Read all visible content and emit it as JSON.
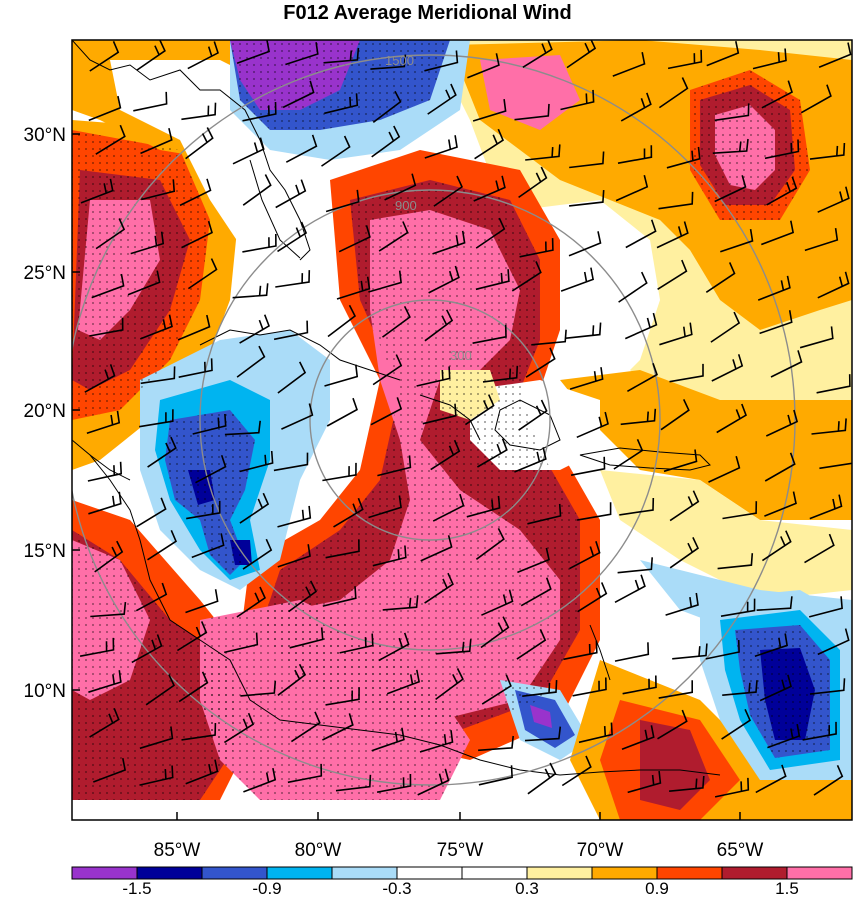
{
  "title": "F012 Average Meridional Wind",
  "axes": {
    "lat_ticks": [
      "30°N",
      "25°N",
      "20°N",
      "15°N",
      "10°N"
    ],
    "lon_ticks": [
      "85°W",
      "80°W",
      "75°W",
      "70°W",
      "65°W"
    ]
  },
  "colorbar": {
    "colors": [
      "#9933cc",
      "#000099",
      "#3355cc",
      "#00b4f0",
      "#aadcf8",
      "#ffffff",
      "#ffffff",
      "#fff0a0",
      "#ffaa00",
      "#ff4500",
      "#b01c2e",
      "#ff6fa8"
    ],
    "labels": [
      "-1.5",
      "-0.9",
      "-0.3",
      "0.3",
      "0.9",
      "1.5"
    ]
  },
  "range_rings": {
    "labels": [
      "300",
      "900",
      "1500"
    ],
    "color": "#8c8c8c"
  },
  "chart_data": {
    "type": "heatmap",
    "title": "F012 Average Meridional Wind",
    "xlabel": "",
    "ylabel": "",
    "x_ticks": [
      "85°W",
      "80°W",
      "75°W",
      "70°W",
      "65°W"
    ],
    "y_ticks": [
      "30°N",
      "25°N",
      "20°N",
      "15°N",
      "10°N"
    ],
    "lon_range": [
      -89,
      -61
    ],
    "lat_range": [
      5,
      33
    ],
    "colorbar_bounds": [
      -1.8,
      -1.5,
      -1.2,
      -0.9,
      -0.6,
      -0.3,
      0,
      0.3,
      0.6,
      0.9,
      1.2,
      1.5,
      1.8
    ],
    "colorbar_tick_labels": [
      "-1.5",
      "-0.9",
      "-0.3",
      "0.3",
      "0.9",
      "1.5"
    ],
    "range_ring_labels": [
      "300",
      "900",
      "1500"
    ],
    "overlays": [
      "wind barbs",
      "stippling",
      "coastlines",
      "range rings"
    ]
  }
}
